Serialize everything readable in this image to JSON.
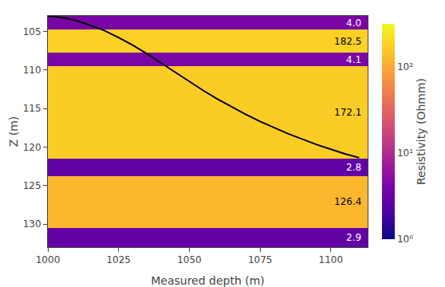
{
  "chart_data": {
    "type": "layers",
    "xlabel": "Measured depth (m)",
    "ylabel": "Z (m)",
    "colorbar_label": "Resistivity (Ohmm)",
    "layers": [
      {
        "z_top": 103.0,
        "z_bot": 104.8,
        "value": 4.0,
        "label": "4.0"
      },
      {
        "z_top": 104.8,
        "z_bot": 107.8,
        "value": 182.5,
        "label": "182.5"
      },
      {
        "z_top": 107.8,
        "z_bot": 109.5,
        "value": 4.1,
        "label": "4.1"
      },
      {
        "z_top": 109.5,
        "z_bot": 121.5,
        "value": 172.1,
        "label": "172.1"
      },
      {
        "z_top": 121.5,
        "z_bot": 123.8,
        "value": 2.8,
        "label": "2.8"
      },
      {
        "z_top": 123.8,
        "z_bot": 130.5,
        "value": 126.4,
        "label": "126.4"
      },
      {
        "z_top": 130.5,
        "z_bot": 133.0,
        "value": 2.9,
        "label": "2.9"
      }
    ],
    "series": [
      {
        "type": "line",
        "color": "#000000",
        "x": [
          1000,
          1005,
          1010,
          1015,
          1020,
          1025,
          1030,
          1035,
          1040,
          1045,
          1050,
          1055,
          1060,
          1065,
          1070,
          1075,
          1080,
          1085,
          1090,
          1095,
          1100,
          1105,
          1110
        ],
        "values": [
          103.0,
          103.2,
          103.6,
          104.2,
          104.9,
          105.8,
          106.8,
          107.9,
          109.1,
          110.3,
          111.5,
          112.7,
          113.8,
          114.8,
          115.8,
          116.7,
          117.5,
          118.3,
          119.0,
          119.7,
          120.3,
          120.9,
          121.4
        ]
      }
    ],
    "xlim": [
      1000,
      1113
    ],
    "ylim": [
      133.0,
      103.0
    ],
    "xticks": [
      1000,
      1025,
      1050,
      1075,
      1100
    ],
    "yticks": [
      105,
      110,
      115,
      120,
      125,
      130
    ],
    "colorbar_range": [
      1.0,
      316.23
    ],
    "colorbar_scale": "log",
    "colorbar_ticks": [
      {
        "value": 1,
        "label": "10⁰"
      },
      {
        "value": 10,
        "label": "10¹"
      },
      {
        "value": 100,
        "label": "10²"
      }
    ],
    "grid": false
  }
}
